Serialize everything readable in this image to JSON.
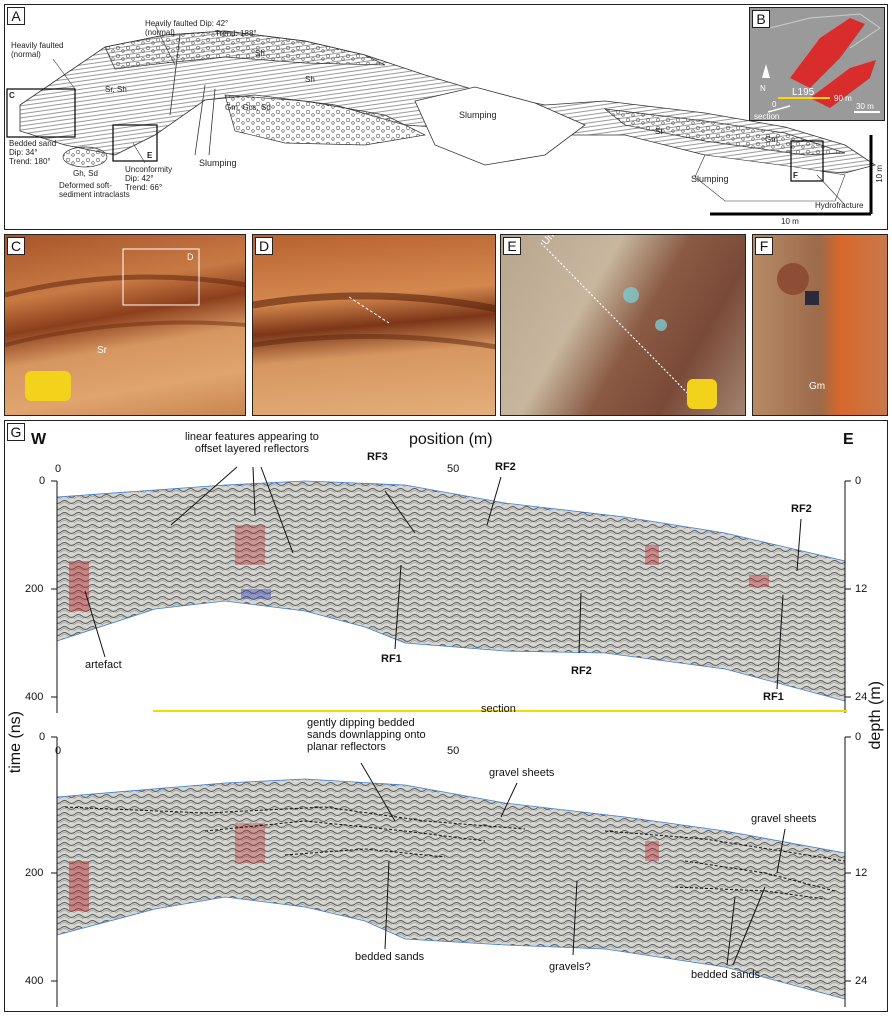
{
  "panels": {
    "a": "A",
    "b": "B",
    "c": "C",
    "d": "D",
    "e": "E",
    "f": "F",
    "g": "G"
  },
  "panel_a": {
    "heavily_faulted_1": "Heavily faulted\n(normal)",
    "heavily_faulted_2": "Heavily faulted Dip: 42°\n(normal)",
    "trend_188": "Trend: 188°",
    "bedded_sand": "Bedded sand\nDip: 34°\nTrend: 180°",
    "deformed": "Deformed soft-\nsediment intraclasts",
    "gh_sd": "Gh, Sd",
    "unconformity": "Unconformity\nDip: 42°\nTrend: 66°",
    "slumping_1": "Slumping",
    "slumping_2": "Slumping",
    "slumping_3": "Slumping",
    "hydrofracture": "Hydrofracture",
    "scale_h": "10 m",
    "scale_v": "10 m",
    "box_c": "C",
    "box_e": "E",
    "box_f": "F",
    "sh1": "Sh",
    "sh2": "Sh",
    "sr": "Sr, Sh",
    "st": "St",
    "gm": "Gm",
    "gm2": "Gm, Gcs, Sd"
  },
  "panel_b": {
    "line": "L195",
    "dist": "90 m",
    "zero": "0",
    "scale": "30 m",
    "north": "N",
    "section": "section"
  },
  "panel_c": {
    "sr": "Sr",
    "box_d": "D"
  },
  "panel_e": {
    "unconformity": "Unconformity"
  },
  "panel_f": {
    "gm": "Gm"
  },
  "panel_g": {
    "w": "W",
    "e": "E",
    "x_title": "position (m)",
    "y_left": "time (ns)",
    "y_right": "depth (m)",
    "x_ticks": [
      "0",
      "50"
    ],
    "time_ticks": [
      "0",
      "200",
      "400"
    ],
    "depth_ticks": [
      "0",
      "12",
      "24"
    ],
    "top_labels": {
      "linear": "linear features appearing to\noffset layered reflectors",
      "rf3": "RF3",
      "rf2a": "RF2",
      "rf2b": "RF2",
      "rf1a": "RF1",
      "rf2c": "RF2",
      "rf1b": "RF1",
      "artefact": "artefact",
      "section": "section"
    },
    "bottom_labels": {
      "gently": "gently dipping bedded\nsands downlapping onto\nplanar reflectors",
      "gravel1": "gravel sheets",
      "gravel2": "gravel sheets",
      "bedded1": "bedded sands",
      "gravels": "gravels?",
      "bedded2": "bedded sands"
    }
  }
}
